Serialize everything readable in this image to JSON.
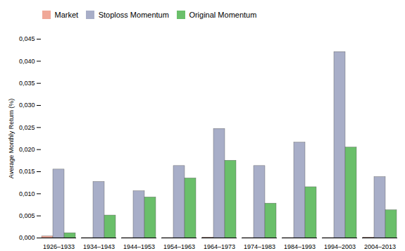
{
  "chart_data": {
    "type": "bar",
    "categories": [
      "1926–1933",
      "1934–1943",
      "1944–1953",
      "1954–1963",
      "1964–1973",
      "1974–1983",
      "1984–1993",
      "1994–2003",
      "2004–2013"
    ],
    "series": [
      {
        "name": "Market",
        "color": "#f0a898",
        "values": [
          0.00035,
          1e-05,
          1e-05,
          1e-05,
          0.00011,
          1e-05,
          1e-05,
          1e-05,
          0.00011
        ]
      },
      {
        "name": "Stoploss Momentum",
        "color": "#a8aec8",
        "values": [
          0.0155,
          0.0127,
          0.0106,
          0.0163,
          0.0247,
          0.0163,
          0.0216,
          0.0421,
          0.0138
        ]
      },
      {
        "name": "Original Momentum",
        "color": "#6abf6a",
        "values": [
          0.0011,
          0.0051,
          0.0092,
          0.0135,
          0.0175,
          0.0078,
          0.0115,
          0.0205,
          0.0063
        ]
      }
    ],
    "ylabel": "Average Monthly Return (%)",
    "ylim": [
      0.0,
      0.045
    ],
    "yticks": [
      {
        "value": 0.0,
        "label": "0,000"
      },
      {
        "value": 0.005,
        "label": "0,005"
      },
      {
        "value": 0.01,
        "label": "0,010"
      },
      {
        "value": 0.015,
        "label": "0,015"
      },
      {
        "value": 0.02,
        "label": "0,020"
      },
      {
        "value": 0.025,
        "label": "0,025"
      },
      {
        "value": 0.03,
        "label": "0,030"
      },
      {
        "value": 0.035,
        "label": "0,035"
      },
      {
        "value": 0.04,
        "label": "0,040"
      },
      {
        "value": 0.045,
        "label": "0,045"
      }
    ],
    "legend": "upper left",
    "grid": false
  }
}
